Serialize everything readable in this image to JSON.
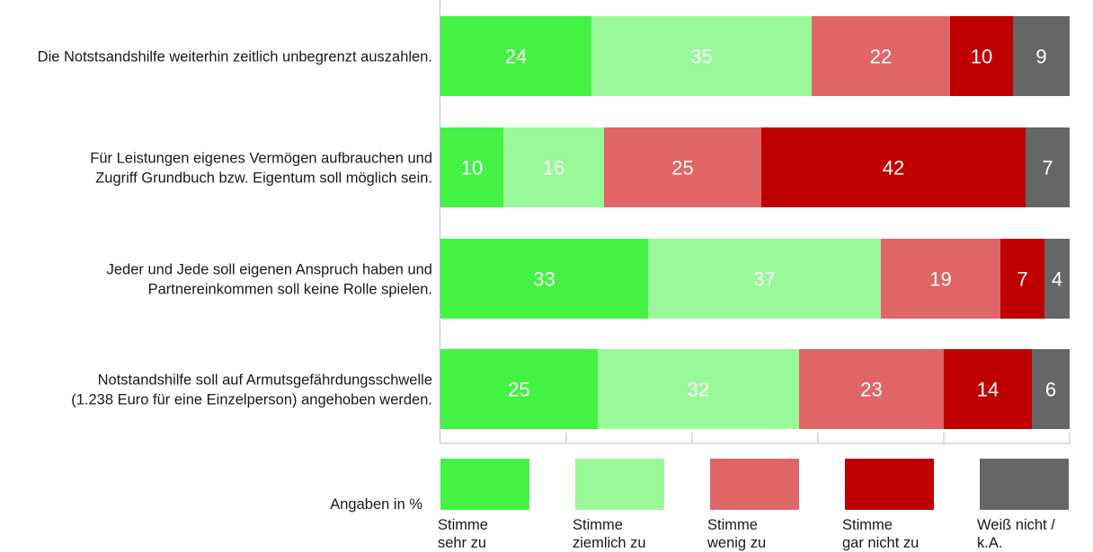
{
  "chart_data": {
    "type": "bar",
    "orientation": "horizontal",
    "stacked": true,
    "xlim": [
      0,
      100
    ],
    "categories": [
      [
        "Die Notstsandshilfe weiterhin zeitlich unbegrenzt auszahlen."
      ],
      [
        "Für Leistungen eigenes Vermögen aufbrauchen und",
        "Zugriff Grundbuch bzw. Eigentum soll möglich sein."
      ],
      [
        "Jeder und Jede soll eigenen Anspruch haben und",
        "Partnereinkommen soll keine Rolle spielen."
      ],
      [
        "Notstandshilfe soll auf Armutsgefährdungsschwelle",
        "(1.238 Euro für eine Einzelperson) angehoben werden."
      ]
    ],
    "series": [
      {
        "name": [
          "Stimme",
          "sehr zu"
        ],
        "color": "#44f244",
        "values": [
          24,
          10,
          33,
          25
        ]
      },
      {
        "name": [
          "Stimme",
          "ziemlich zu"
        ],
        "color": "#99f999",
        "values": [
          35,
          16,
          37,
          32
        ]
      },
      {
        "name": [
          "Stimme",
          "wenig zu"
        ],
        "color": "#e06666",
        "values": [
          22,
          25,
          19,
          23
        ]
      },
      {
        "name": [
          "Stimme",
          "gar nicht zu"
        ],
        "color": "#c00000",
        "values": [
          10,
          42,
          7,
          14
        ]
      },
      {
        "name": [
          "Weiß nicht /",
          "k.A."
        ],
        "color": "#666666",
        "values": [
          9,
          7,
          4,
          6
        ]
      }
    ],
    "unit_note": "Angaben in %",
    "legend_position": "bottom",
    "grid": false
  }
}
